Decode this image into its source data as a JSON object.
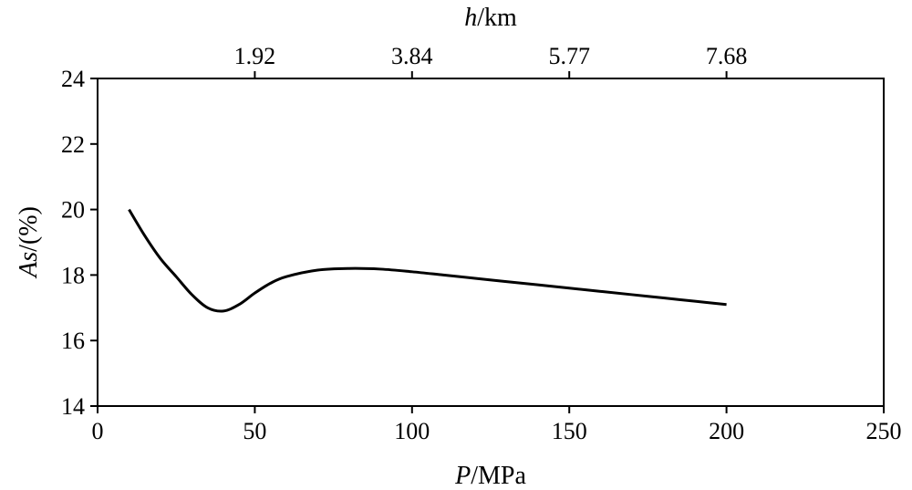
{
  "chart_data": {
    "type": "line",
    "x_axis": {
      "label_var": "P",
      "label_unit": "/MPa",
      "range": [
        0,
        250
      ],
      "ticks": [
        0,
        50,
        100,
        150,
        200,
        250
      ]
    },
    "y_axis": {
      "label_var": "As",
      "label_unit": "/(%)",
      "range": [
        14,
        24
      ],
      "ticks": [
        14,
        16,
        18,
        20,
        22,
        24
      ]
    },
    "top_axis": {
      "label_var": "h",
      "label_unit": "/km",
      "ticks": [
        {
          "p": 50,
          "label": "1.92"
        },
        {
          "p": 100,
          "label": "3.84"
        },
        {
          "p": 150,
          "label": "5.77"
        },
        {
          "p": 200,
          "label": "7.68"
        }
      ]
    },
    "series": [
      {
        "color": "#000000",
        "x": [
          10,
          15,
          20,
          25,
          30,
          35,
          40,
          45,
          50,
          55,
          60,
          70,
          80,
          90,
          100,
          110,
          120,
          130,
          140,
          150,
          160,
          170,
          180,
          190,
          200
        ],
        "y": [
          20.0,
          19.2,
          18.5,
          17.95,
          17.4,
          17.0,
          16.9,
          17.1,
          17.45,
          17.75,
          17.95,
          18.15,
          18.2,
          18.18,
          18.1,
          18.0,
          17.9,
          17.8,
          17.7,
          17.6,
          17.5,
          17.4,
          17.3,
          17.2,
          17.1
        ]
      }
    ],
    "grid": false,
    "title": ""
  }
}
